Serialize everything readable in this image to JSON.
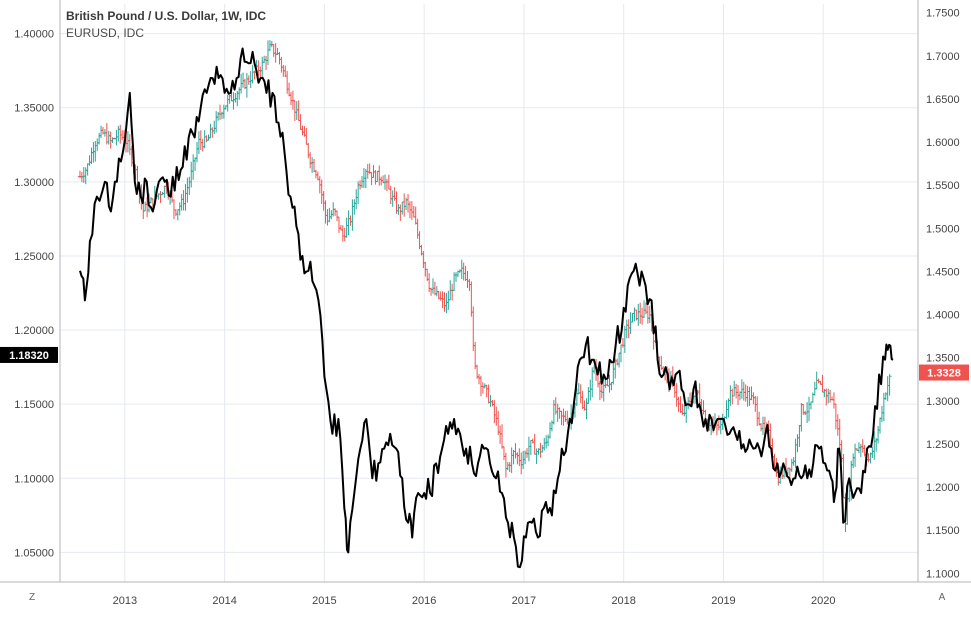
{
  "legend": {
    "title": "British Pound / U.S. Dollar, 1W, IDC",
    "secondary": "EURUSD, IDC"
  },
  "buttons": {
    "left_scale": "Z",
    "right_scale": "A"
  },
  "colors": {
    "up": "#26a69a",
    "down": "#ef5350",
    "line": "#000000",
    "grid": "#e6eaef",
    "axis": "#444444"
  },
  "chart_data": {
    "type": "line",
    "x_ticks": [
      "2013",
      "2014",
      "2015",
      "2016",
      "2017",
      "2018",
      "2019",
      "2020"
    ],
    "left_axis": {
      "label": "",
      "ticks": [
        "1.40000",
        "1.35000",
        "1.30000",
        "1.25000",
        "1.20000",
        "1.15000",
        "1.10000",
        "1.05000"
      ],
      "range": [
        1.03,
        1.42
      ],
      "last_value": "1.18320"
    },
    "right_axis": {
      "label": "",
      "ticks": [
        "1.7500",
        "1.7000",
        "1.6500",
        "1.6000",
        "1.5500",
        "1.5000",
        "1.4500",
        "1.4000",
        "1.3500",
        "1.3000",
        "1.2500",
        "1.2000",
        "1.1500",
        "1.1000"
      ],
      "range": [
        1.09,
        1.76
      ],
      "last_value": "1.3328"
    },
    "series": [
      {
        "name": "British Pound / U.S. Dollar",
        "style": "ohlc-bars",
        "axis": "right",
        "points": [
          [
            2012.55,
            1.56
          ],
          [
            2012.62,
            1.57
          ],
          [
            2012.7,
            1.6
          ],
          [
            2012.78,
            1.61
          ],
          [
            2012.86,
            1.6
          ],
          [
            2012.94,
            1.61
          ],
          [
            2013.02,
            1.6
          ],
          [
            2013.1,
            1.57
          ],
          [
            2013.18,
            1.52
          ],
          [
            2013.26,
            1.53
          ],
          [
            2013.34,
            1.54
          ],
          [
            2013.42,
            1.55
          ],
          [
            2013.5,
            1.52
          ],
          [
            2013.58,
            1.53
          ],
          [
            2013.66,
            1.56
          ],
          [
            2013.74,
            1.6
          ],
          [
            2013.82,
            1.6
          ],
          [
            2013.9,
            1.62
          ],
          [
            2013.98,
            1.64
          ],
          [
            2014.06,
            1.65
          ],
          [
            2014.14,
            1.66
          ],
          [
            2014.22,
            1.67
          ],
          [
            2014.3,
            1.68
          ],
          [
            2014.38,
            1.69
          ],
          [
            2014.46,
            1.71
          ],
          [
            2014.54,
            1.7
          ],
          [
            2014.62,
            1.67
          ],
          [
            2014.7,
            1.64
          ],
          [
            2014.78,
            1.61
          ],
          [
            2014.86,
            1.58
          ],
          [
            2014.94,
            1.56
          ],
          [
            2015.02,
            1.51
          ],
          [
            2015.1,
            1.52
          ],
          [
            2015.18,
            1.49
          ],
          [
            2015.26,
            1.51
          ],
          [
            2015.34,
            1.55
          ],
          [
            2015.42,
            1.57
          ],
          [
            2015.5,
            1.56
          ],
          [
            2015.58,
            1.56
          ],
          [
            2015.66,
            1.54
          ],
          [
            2015.74,
            1.52
          ],
          [
            2015.82,
            1.53
          ],
          [
            2015.9,
            1.51
          ],
          [
            2015.98,
            1.47
          ],
          [
            2016.06,
            1.43
          ],
          [
            2016.14,
            1.42
          ],
          [
            2016.22,
            1.41
          ],
          [
            2016.3,
            1.44
          ],
          [
            2016.38,
            1.45
          ],
          [
            2016.46,
            1.44
          ],
          [
            2016.5,
            1.34
          ],
          [
            2016.58,
            1.32
          ],
          [
            2016.66,
            1.3
          ],
          [
            2016.74,
            1.27
          ],
          [
            2016.82,
            1.22
          ],
          [
            2016.9,
            1.24
          ],
          [
            2016.98,
            1.23
          ],
          [
            2017.06,
            1.25
          ],
          [
            2017.14,
            1.24
          ],
          [
            2017.22,
            1.25
          ],
          [
            2017.3,
            1.29
          ],
          [
            2017.38,
            1.28
          ],
          [
            2017.46,
            1.28
          ],
          [
            2017.54,
            1.31
          ],
          [
            2017.62,
            1.29
          ],
          [
            2017.7,
            1.34
          ],
          [
            2017.78,
            1.31
          ],
          [
            2017.86,
            1.32
          ],
          [
            2017.94,
            1.35
          ],
          [
            2018.02,
            1.38
          ],
          [
            2018.1,
            1.4
          ],
          [
            2018.18,
            1.4
          ],
          [
            2018.26,
            1.4
          ],
          [
            2018.34,
            1.35
          ],
          [
            2018.42,
            1.33
          ],
          [
            2018.5,
            1.32
          ],
          [
            2018.58,
            1.28
          ],
          [
            2018.66,
            1.3
          ],
          [
            2018.74,
            1.31
          ],
          [
            2018.82,
            1.28
          ],
          [
            2018.9,
            1.27
          ],
          [
            2018.98,
            1.27
          ],
          [
            2019.06,
            1.31
          ],
          [
            2019.14,
            1.31
          ],
          [
            2019.22,
            1.31
          ],
          [
            2019.3,
            1.3
          ],
          [
            2019.38,
            1.27
          ],
          [
            2019.46,
            1.26
          ],
          [
            2019.54,
            1.21
          ],
          [
            2019.62,
            1.22
          ],
          [
            2019.7,
            1.23
          ],
          [
            2019.78,
            1.29
          ],
          [
            2019.86,
            1.29
          ],
          [
            2019.94,
            1.32
          ],
          [
            2020.02,
            1.31
          ],
          [
            2020.1,
            1.3
          ],
          [
            2020.18,
            1.24
          ],
          [
            2020.22,
            1.16
          ],
          [
            2020.3,
            1.24
          ],
          [
            2020.38,
            1.25
          ],
          [
            2020.46,
            1.23
          ],
          [
            2020.54,
            1.26
          ],
          [
            2020.62,
            1.31
          ],
          [
            2020.68,
            1.33
          ]
        ]
      },
      {
        "name": "EURUSD",
        "style": "line",
        "axis": "left",
        "points": [
          [
            2012.55,
            1.24
          ],
          [
            2012.6,
            1.22
          ],
          [
            2012.65,
            1.26
          ],
          [
            2012.72,
            1.29
          ],
          [
            2012.8,
            1.3
          ],
          [
            2012.86,
            1.28
          ],
          [
            2012.92,
            1.3
          ],
          [
            2012.98,
            1.32
          ],
          [
            2013.05,
            1.36
          ],
          [
            2013.1,
            1.3
          ],
          [
            2013.16,
            1.29
          ],
          [
            2013.22,
            1.3
          ],
          [
            2013.28,
            1.28
          ],
          [
            2013.34,
            1.3
          ],
          [
            2013.4,
            1.3
          ],
          [
            2013.46,
            1.29
          ],
          [
            2013.52,
            1.31
          ],
          [
            2013.58,
            1.31
          ],
          [
            2013.64,
            1.33
          ],
          [
            2013.7,
            1.33
          ],
          [
            2013.76,
            1.35
          ],
          [
            2013.82,
            1.36
          ],
          [
            2013.88,
            1.37
          ],
          [
            2013.94,
            1.37
          ],
          [
            2014.0,
            1.36
          ],
          [
            2014.06,
            1.36
          ],
          [
            2014.12,
            1.37
          ],
          [
            2014.18,
            1.39
          ],
          [
            2014.24,
            1.38
          ],
          [
            2014.3,
            1.38
          ],
          [
            2014.36,
            1.37
          ],
          [
            2014.42,
            1.36
          ],
          [
            2014.48,
            1.36
          ],
          [
            2014.54,
            1.34
          ],
          [
            2014.6,
            1.32
          ],
          [
            2014.66,
            1.29
          ],
          [
            2014.72,
            1.27
          ],
          [
            2014.78,
            1.25
          ],
          [
            2014.84,
            1.24
          ],
          [
            2014.9,
            1.23
          ],
          [
            2014.96,
            1.21
          ],
          [
            2015.02,
            1.16
          ],
          [
            2015.08,
            1.13
          ],
          [
            2015.14,
            1.14
          ],
          [
            2015.2,
            1.08
          ],
          [
            2015.24,
            1.05
          ],
          [
            2015.3,
            1.09
          ],
          [
            2015.36,
            1.12
          ],
          [
            2015.42,
            1.14
          ],
          [
            2015.48,
            1.1
          ],
          [
            2015.54,
            1.11
          ],
          [
            2015.6,
            1.12
          ],
          [
            2015.66,
            1.13
          ],
          [
            2015.72,
            1.12
          ],
          [
            2015.78,
            1.1
          ],
          [
            2015.84,
            1.07
          ],
          [
            2015.88,
            1.06
          ],
          [
            2015.94,
            1.09
          ],
          [
            2016.0,
            1.09
          ],
          [
            2016.06,
            1.09
          ],
          [
            2016.12,
            1.11
          ],
          [
            2016.18,
            1.12
          ],
          [
            2016.24,
            1.13
          ],
          [
            2016.3,
            1.14
          ],
          [
            2016.36,
            1.13
          ],
          [
            2016.42,
            1.12
          ],
          [
            2016.48,
            1.11
          ],
          [
            2016.54,
            1.11
          ],
          [
            2016.6,
            1.12
          ],
          [
            2016.66,
            1.11
          ],
          [
            2016.72,
            1.1
          ],
          [
            2016.78,
            1.09
          ],
          [
            2016.84,
            1.07
          ],
          [
            2016.9,
            1.06
          ],
          [
            2016.96,
            1.04
          ],
          [
            2017.02,
            1.06
          ],
          [
            2017.08,
            1.07
          ],
          [
            2017.14,
            1.06
          ],
          [
            2017.2,
            1.08
          ],
          [
            2017.26,
            1.08
          ],
          [
            2017.32,
            1.09
          ],
          [
            2017.38,
            1.12
          ],
          [
            2017.44,
            1.13
          ],
          [
            2017.5,
            1.15
          ],
          [
            2017.56,
            1.18
          ],
          [
            2017.62,
            1.19
          ],
          [
            2017.68,
            1.18
          ],
          [
            2017.74,
            1.17
          ],
          [
            2017.8,
            1.17
          ],
          [
            2017.86,
            1.18
          ],
          [
            2017.92,
            1.19
          ],
          [
            2017.98,
            1.2
          ],
          [
            2018.04,
            1.23
          ],
          [
            2018.1,
            1.24
          ],
          [
            2018.16,
            1.23
          ],
          [
            2018.22,
            1.23
          ],
          [
            2018.28,
            1.22
          ],
          [
            2018.34,
            1.18
          ],
          [
            2018.4,
            1.17
          ],
          [
            2018.46,
            1.16
          ],
          [
            2018.52,
            1.17
          ],
          [
            2018.58,
            1.16
          ],
          [
            2018.64,
            1.15
          ],
          [
            2018.7,
            1.16
          ],
          [
            2018.76,
            1.15
          ],
          [
            2018.82,
            1.14
          ],
          [
            2018.88,
            1.14
          ],
          [
            2018.94,
            1.14
          ],
          [
            2019.0,
            1.14
          ],
          [
            2019.06,
            1.13
          ],
          [
            2019.12,
            1.13
          ],
          [
            2019.18,
            1.12
          ],
          [
            2019.24,
            1.12
          ],
          [
            2019.3,
            1.12
          ],
          [
            2019.36,
            1.12
          ],
          [
            2019.42,
            1.13
          ],
          [
            2019.48,
            1.12
          ],
          [
            2019.54,
            1.11
          ],
          [
            2019.6,
            1.11
          ],
          [
            2019.66,
            1.1
          ],
          [
            2019.72,
            1.1
          ],
          [
            2019.78,
            1.1
          ],
          [
            2019.84,
            1.1
          ],
          [
            2019.9,
            1.11
          ],
          [
            2019.96,
            1.12
          ],
          [
            2020.02,
            1.11
          ],
          [
            2020.08,
            1.1
          ],
          [
            2020.12,
            1.09
          ],
          [
            2020.16,
            1.12
          ],
          [
            2020.2,
            1.07
          ],
          [
            2020.26,
            1.1
          ],
          [
            2020.32,
            1.09
          ],
          [
            2020.38,
            1.09
          ],
          [
            2020.44,
            1.12
          ],
          [
            2020.5,
            1.13
          ],
          [
            2020.56,
            1.17
          ],
          [
            2020.62,
            1.18
          ],
          [
            2020.66,
            1.19
          ],
          [
            2020.7,
            1.18
          ]
        ]
      }
    ],
    "grid": true,
    "legend_position": "top-left"
  }
}
